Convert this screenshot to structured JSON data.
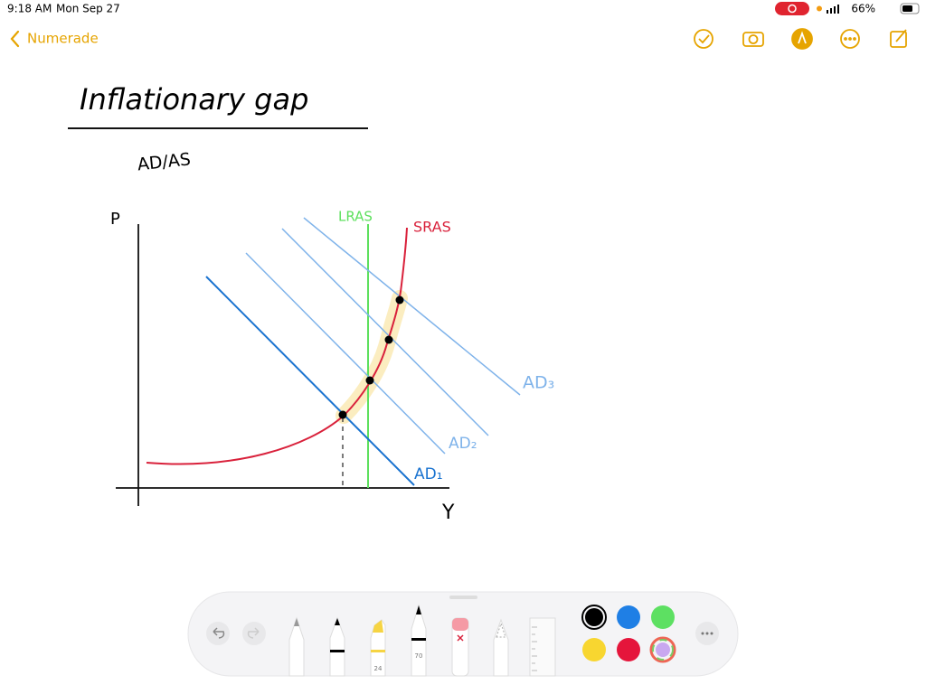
{
  "status_bar": {
    "time": "9:18 AM",
    "date": "Mon Sep 27",
    "battery": "66%"
  },
  "nav": {
    "back": "Numerade"
  },
  "note": {
    "title": "Inflationary gap",
    "subtitle": "AD/AS",
    "diagram": {
      "y_axis": "P",
      "x_axis": "Y",
      "lras": "LRAS",
      "sras": "SRAS",
      "ad1": "AD₁",
      "ad2": "AD₂",
      "ad3": "AD₃"
    }
  },
  "toolbar": {
    "marker_size": "24",
    "pen_size": "70"
  }
}
